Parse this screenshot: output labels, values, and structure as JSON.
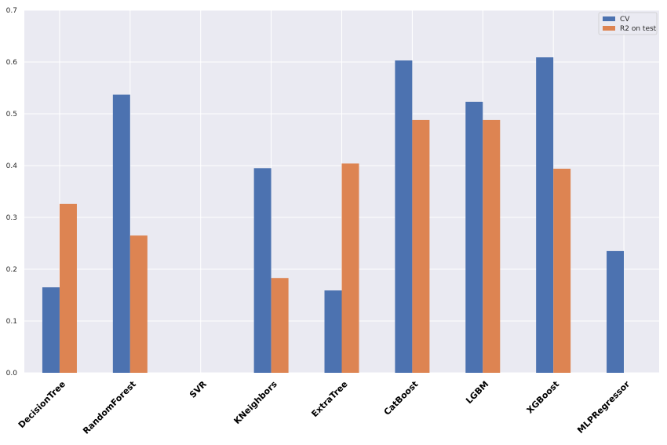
{
  "chart_data": {
    "type": "bar",
    "title": "",
    "xlabel": "",
    "ylabel": "",
    "categories": [
      "DecisionTree",
      "RandomForest",
      "SVR",
      "KNeighbors",
      "ExtraTree",
      "CatBoost",
      "LGBM",
      "XGBoost",
      "MLPRegressor"
    ],
    "series": [
      {
        "name": "CV",
        "color": "#4c72b0",
        "values": [
          0.165,
          0.537,
          0.0,
          0.395,
          0.159,
          0.603,
          0.523,
          0.609,
          0.235
        ]
      },
      {
        "name": "R2 on test",
        "color": "#dd8452",
        "values": [
          0.326,
          0.265,
          0.0,
          0.183,
          0.404,
          0.488,
          0.488,
          0.394,
          0.0
        ]
      }
    ],
    "ylim": [
      0,
      0.7
    ],
    "yticks": [
      "0.0",
      "0.1",
      "0.2",
      "0.3",
      "0.4",
      "0.5",
      "0.6",
      "0.7"
    ],
    "grid": true,
    "legend": "top-right",
    "background": "#eaeaf2"
  }
}
